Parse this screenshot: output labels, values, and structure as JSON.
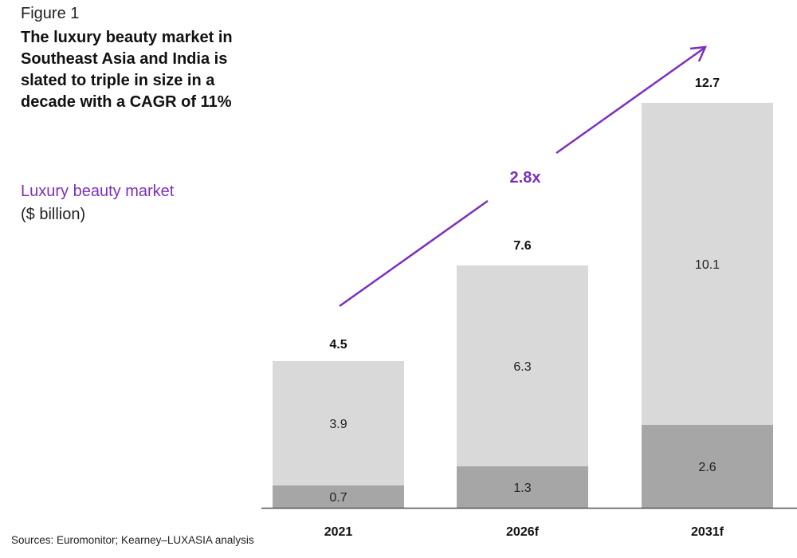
{
  "figure_label": "Figure 1",
  "title": "The luxury beauty market in Southeast Asia and India is slated to triple in size in a decade with a CAGR of 11%",
  "metric_label": "Luxury beauty market",
  "unit_label": "($ billion)",
  "source": "Sources: Euromonitor; Kearney–LUXASIA analysis",
  "growth_label": "2.8x",
  "colors": {
    "accent": "#7b2fbe",
    "series_bottom": "#a6a6a6",
    "series_top": "#d9d9d9",
    "axis": "#555555"
  },
  "chart_data": {
    "type": "bar",
    "stacked": true,
    "categories": [
      "2021",
      "2026f",
      "2031f"
    ],
    "series": [
      {
        "values": [
          0.7,
          1.3,
          2.6
        ],
        "color": "#a6a6a6"
      },
      {
        "values": [
          3.9,
          6.3,
          10.1
        ],
        "color": "#d9d9d9"
      }
    ],
    "series_labels": [
      [
        "0.7",
        "1.3",
        "2.6"
      ],
      [
        "3.9",
        "6.3",
        "10.1"
      ]
    ],
    "totals": [
      "4.5",
      "7.6",
      "12.7"
    ],
    "total_values": [
      4.5,
      7.6,
      12.7
    ],
    "ylim": [
      0,
      12.7
    ],
    "grid": false,
    "legend": "none"
  }
}
